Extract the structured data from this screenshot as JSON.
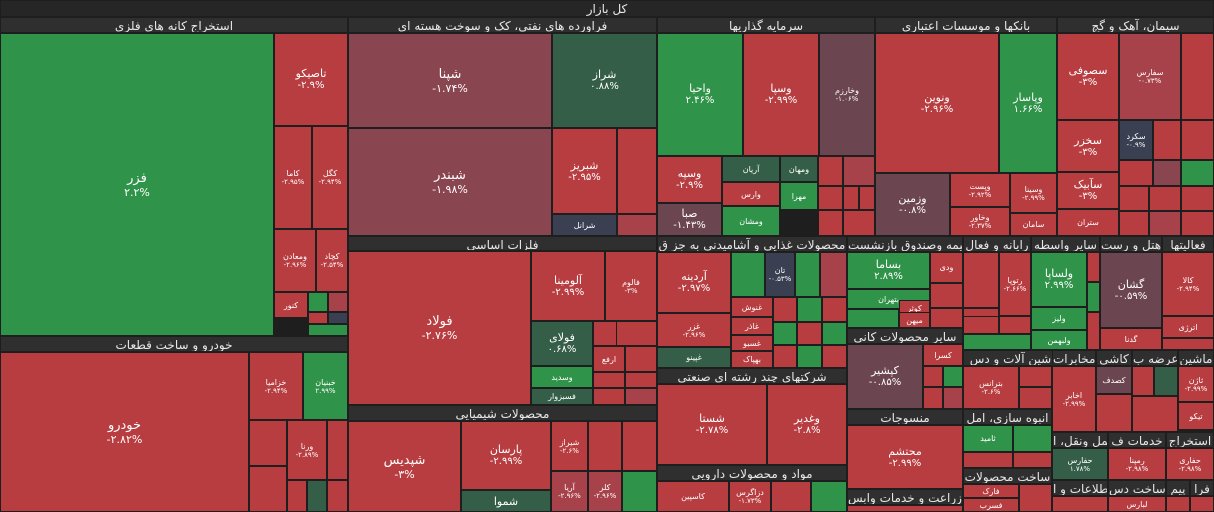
{
  "title": "کل بازار",
  "colors": {
    "up_strong": "#30934a",
    "up_mid": "#3c9b52",
    "up_dark": "#355e48",
    "down_strong": "#b83d41",
    "down_mid": "#a8424a",
    "down_dark": "#8a4650",
    "down_muted": "#6b4550",
    "neutral": "#3a3f52",
    "header": "#2f2f2f"
  },
  "sectors": [
    "استخراج کانه های فلزی",
    "فراورده های نفتی، کک و سوخت هسته ای",
    "سرمایه گذاریها",
    "بانکها و موسسات اعتباری",
    "سیمان، آهک و گچ",
    "خودرو و ساخت قطعات",
    "فلزات اساسی",
    "محصولات غذایی و آشامیدنی به جز ق",
    "بیمه وصندوق بازنشست",
    "رایانه و فعال",
    "سایر واسطه",
    "هتل و رست",
    "فعالیتها",
    "سایر محصولات کانی",
    "شرکتهای چند رشته ای صنعتی",
    "منسوجات",
    "ماشین آلات و دس",
    "مخابرات",
    "کاشی",
    "عرضه ب",
    "ماشین",
    "محصولات شیمیایی",
    "مواد و محصولات دارویی",
    "انبوه سازی، امل",
    "ساخت محصولات",
    "حمل ونقل، ا",
    "خدمات ف",
    "استخراج",
    "زراعت و خدمات وابس",
    "اطلاعات و ا",
    "ساخت دس",
    "پیم",
    "فرا"
  ],
  "stocks": [
    {
      "name": "فزر",
      "change": "۲.۲%"
    },
    {
      "name": "تاصیکو",
      "change": "-۲.۹%"
    },
    {
      "name": "کاما",
      "change": "-۲.۹۵%"
    },
    {
      "name": "کگل",
      "change": "-۲.۹۴%"
    },
    {
      "name": "ومعادن",
      "change": "-۲.۹۶%"
    },
    {
      "name": "کچاد",
      "change": "-۲.۵۴%"
    },
    {
      "name": "کنور",
      "change": ""
    },
    {
      "name": "شپنا",
      "change": "-۱.۷۴%"
    },
    {
      "name": "شبندر",
      "change": "-۱.۹۸%"
    },
    {
      "name": "شراز",
      "change": "۰.۸۸%"
    },
    {
      "name": "شبریز",
      "change": "-۲.۹۵%"
    },
    {
      "name": "شرانل",
      "change": ""
    },
    {
      "name": "واحیا",
      "change": "۲.۴۶%"
    },
    {
      "name": "وسپا",
      "change": "-۲.۹۹%"
    },
    {
      "name": "وخارزم",
      "change": "-۱.۰۶%"
    },
    {
      "name": "وسپه",
      "change": "-۲.۹%"
    },
    {
      "name": "آریان",
      "change": ""
    },
    {
      "name": "ومهان",
      "change": ""
    },
    {
      "name": "وارس",
      "change": ""
    },
    {
      "name": "مهرا",
      "change": ""
    },
    {
      "name": "صبا",
      "change": "-۱.۴۳%"
    },
    {
      "name": "ومشان",
      "change": ""
    },
    {
      "name": "ونوین",
      "change": "-۲.۹۶%"
    },
    {
      "name": "وپاسار",
      "change": "۱.۶۶%"
    },
    {
      "name": "وزمین",
      "change": "-۰.۸%"
    },
    {
      "name": "وپست",
      "change": "-۲.۹۲%"
    },
    {
      "name": "وسینا",
      "change": "-۲.۹۹%"
    },
    {
      "name": "وخاور",
      "change": "-۲.۳۷%"
    },
    {
      "name": "سامان",
      "change": ""
    },
    {
      "name": "سصوفی",
      "change": "-۳%"
    },
    {
      "name": "سفارس",
      "change": "-۰.۷۳%"
    },
    {
      "name": "سخزر",
      "change": "-۳%"
    },
    {
      "name": "سکرد",
      "change": "-۰.۹%"
    },
    {
      "name": "سآبیک",
      "change": "-۳%"
    },
    {
      "name": "ستران",
      "change": ""
    },
    {
      "name": "خودرو",
      "change": "-۲.۸۲%"
    },
    {
      "name": "خزامیا",
      "change": "-۲.۹۴%"
    },
    {
      "name": "خبنیان",
      "change": "۲.۹۹%"
    },
    {
      "name": "ورنا",
      "change": "-۲.۸۹%"
    },
    {
      "name": "فولاد",
      "change": "-۲.۷۶%"
    },
    {
      "name": "آلومینا",
      "change": "-۲.۹۹%"
    },
    {
      "name": "فالوم",
      "change": "-۳%"
    },
    {
      "name": "فولای",
      "change": "۰.۶۸%"
    },
    {
      "name": "ارفع",
      "change": ""
    },
    {
      "name": "وسدید",
      "change": ""
    },
    {
      "name": "فسبزوار",
      "change": ""
    },
    {
      "name": "آردینه",
      "change": "-۲.۹۷%"
    },
    {
      "name": "غزر",
      "change": "-۲.۹۶%"
    },
    {
      "name": "غپینو",
      "change": ""
    },
    {
      "name": "تان",
      "change": "-۰.۵۳%"
    },
    {
      "name": "غنوش",
      "change": ""
    },
    {
      "name": "غاذر",
      "change": ""
    },
    {
      "name": "غسبو",
      "change": ""
    },
    {
      "name": "بهپاک",
      "change": ""
    },
    {
      "name": "بساما",
      "change": "۲.۸۹%"
    },
    {
      "name": "بتهران",
      "change": ""
    },
    {
      "name": "کوثر",
      "change": ""
    },
    {
      "name": "میهن",
      "change": ""
    },
    {
      "name": "ودی",
      "change": ""
    },
    {
      "name": "رافزا",
      "change": ""
    },
    {
      "name": "رتوپا",
      "change": "-۲.۶۶%"
    },
    {
      "name": "ولساپا",
      "change": "۲.۹۹%"
    },
    {
      "name": "ولیز",
      "change": ""
    },
    {
      "name": "ولبهمن",
      "change": ""
    },
    {
      "name": "گشان",
      "change": "-۰.۵۹%"
    },
    {
      "name": "گدنا",
      "change": ""
    },
    {
      "name": "کالا",
      "change": "-۲.۹۴%"
    },
    {
      "name": "اترژی",
      "change": ""
    },
    {
      "name": "کپشیر",
      "change": "-۰.۸۵%"
    },
    {
      "name": "کسرا",
      "change": ""
    },
    {
      "name": "شستا",
      "change": "-۲.۷۸%"
    },
    {
      "name": "وغدیر",
      "change": "-۲.۸%"
    },
    {
      "name": "بترانس",
      "change": "-۲.۶%"
    },
    {
      "name": "اخابر",
      "change": "-۲.۹۹%"
    },
    {
      "name": "کصدف",
      "change": ""
    },
    {
      "name": "ثاژن",
      "change": "-۲.۹۹%"
    },
    {
      "name": "تیکو",
      "change": ""
    },
    {
      "name": "شپدیس",
      "change": "-۳%"
    },
    {
      "name": "پارسان",
      "change": "-۲.۹۹%"
    },
    {
      "name": "شیراز",
      "change": "-۲.۶%"
    },
    {
      "name": "آریا",
      "change": "-۲.۹۶%"
    },
    {
      "name": "کلر",
      "change": "-۲.۹۶%"
    },
    {
      "name": "شموا",
      "change": ""
    },
    {
      "name": "کاسپین",
      "change": ""
    },
    {
      "name": "دزاگرس",
      "change": "-۱.۷۳%"
    },
    {
      "name": "محتشم",
      "change": "-۲.۹۹%"
    },
    {
      "name": "ثامید",
      "change": ""
    },
    {
      "name": "فارک",
      "change": ""
    },
    {
      "name": "فسرب",
      "change": ""
    },
    {
      "name": "حفارس",
      "change": "۱.۷۸%"
    },
    {
      "name": "رمپنا",
      "change": "-۲.۹۸%"
    },
    {
      "name": "حفاری",
      "change": "-۲.۹۸%"
    },
    {
      "name": "لبارس",
      "change": ""
    }
  ]
}
